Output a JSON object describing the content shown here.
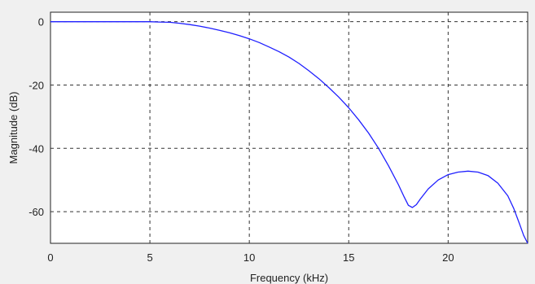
{
  "chart_data": {
    "type": "line",
    "title": "",
    "xlabel": "Frequency (kHz)",
    "ylabel": "Magnitude (dB)",
    "xlim": [
      0,
      24
    ],
    "ylim": [
      -70,
      3
    ],
    "xticks": [
      0,
      5,
      10,
      15,
      20
    ],
    "yticks": [
      0,
      -20,
      -40,
      -60
    ],
    "x_tick_labels": [
      "0",
      "5",
      "10",
      "15",
      "20"
    ],
    "y_tick_labels": [
      "0",
      "-20",
      "-40",
      "-60"
    ],
    "grid": true,
    "legend": "none",
    "series": [
      {
        "color": "#1f1fff",
        "x": [
          0,
          2,
          4,
          5,
          5.5,
          6,
          6.5,
          7,
          7.5,
          8,
          8.5,
          9,
          9.5,
          10,
          10.5,
          11,
          11.5,
          12,
          12.5,
          13,
          13.5,
          14,
          14.5,
          15,
          15.5,
          16,
          16.5,
          17,
          17.5,
          17.8,
          18.0,
          18.2,
          18.4,
          18.6,
          19.0,
          19.5,
          20.0,
          20.5,
          21.0,
          21.5,
          22.0,
          22.5,
          23.0,
          23.3,
          23.6,
          23.8,
          24.0
        ],
        "y": [
          0,
          0,
          0,
          0,
          -0.1,
          -0.2,
          -0.5,
          -0.9,
          -1.4,
          -2.0,
          -2.7,
          -3.5,
          -4.4,
          -5.4,
          -6.6,
          -8.0,
          -9.5,
          -11.2,
          -13.2,
          -15.5,
          -18.0,
          -20.8,
          -23.8,
          -27.2,
          -31.0,
          -35.2,
          -40.0,
          -45.5,
          -51.5,
          -55.5,
          -58.0,
          -58.7,
          -57.8,
          -56.0,
          -52.8,
          -50.0,
          -48.3,
          -47.5,
          -47.2,
          -47.5,
          -48.6,
          -51.0,
          -55.0,
          -59.0,
          -64.0,
          -67.5,
          -70.0
        ]
      }
    ]
  }
}
